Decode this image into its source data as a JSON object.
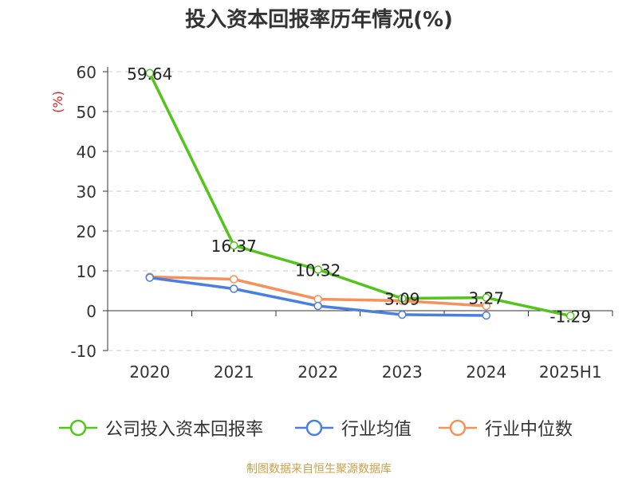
{
  "header": {
    "title": "投入资本回报率历年情况(%)"
  },
  "footer": {
    "source": "制图数据来自恒生聚源数据库"
  },
  "chart_data": {
    "type": "line",
    "title": "投入资本回报率历年情况(%)",
    "ylabel": "(%)",
    "xlabel": "",
    "categories": [
      "2020",
      "2021",
      "2022",
      "2023",
      "2024",
      "2025H1"
    ],
    "ylim": [
      -10,
      60
    ],
    "yticks": [
      -10,
      0,
      10,
      20,
      30,
      40,
      50,
      60
    ],
    "grid": true,
    "legend_position": "bottom",
    "series": [
      {
        "name": "公司投入资本回报率",
        "color": "#52c41a",
        "values": [
          59.64,
          16.37,
          10.32,
          3.09,
          3.27,
          -1.29
        ],
        "labels": [
          "59.64",
          "16.37",
          "10.32",
          "3.09",
          "3.27",
          "-1.29"
        ]
      },
      {
        "name": "行业均值",
        "color": "#4a7fe0",
        "values": [
          8.3,
          5.5,
          1.2,
          -1.0,
          -1.2,
          null
        ]
      },
      {
        "name": "行业中位数",
        "color": "#f5915a",
        "values": [
          8.5,
          7.9,
          2.9,
          2.5,
          1.2,
          null
        ]
      }
    ]
  }
}
